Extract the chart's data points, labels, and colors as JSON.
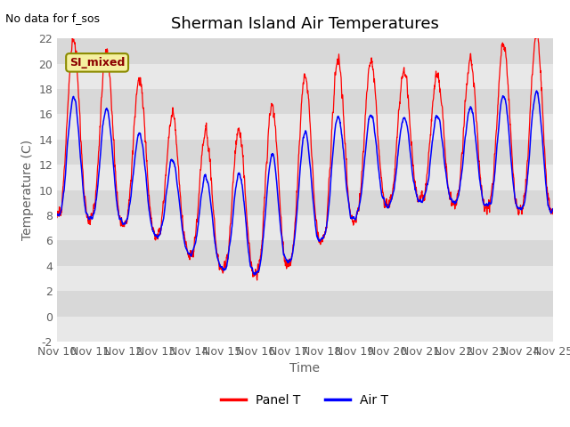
{
  "title": "Sherman Island Air Temperatures",
  "xlabel": "Time",
  "ylabel": "Temperature (C)",
  "annotation": "No data for f_sos",
  "legend_label": "SI_mixed",
  "series_labels": [
    "Panel T",
    "Air T"
  ],
  "series_colors": [
    "red",
    "blue"
  ],
  "ylim": [
    -2,
    22
  ],
  "xlim": [
    0,
    15
  ],
  "x_tick_labels": [
    "Nov 10",
    "Nov 11",
    "Nov 12",
    "Nov 13",
    "Nov 14",
    "Nov 15",
    "Nov 16",
    "Nov 17",
    "Nov 18",
    "Nov 19",
    "Nov 20",
    "Nov 21",
    "Nov 22",
    "Nov 23",
    "Nov 24",
    "Nov 25"
  ],
  "plot_bg_color": "#e8e8e8",
  "band_colors": [
    "#e8e8e8",
    "#d8d8d8"
  ],
  "grid_color": "white",
  "title_fontsize": 13,
  "axis_fontsize": 10,
  "tick_fontsize": 9,
  "tick_color": "#606060",
  "label_color": "#606060"
}
